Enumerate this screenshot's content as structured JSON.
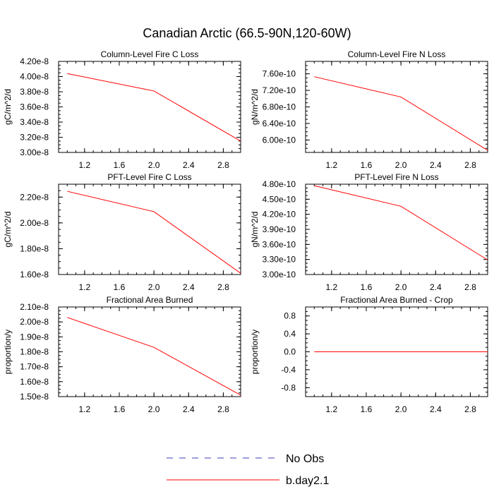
{
  "page": {
    "title": "Canadian Arctic (66.5-90N,120-60W)",
    "line_color": "#ff0000",
    "noobs_color": "#3b3bbf"
  },
  "legend": {
    "entries": [
      {
        "label": "No Obs",
        "style": "dashed",
        "color": "#3b3bbf"
      },
      {
        "label": "b.day2.1",
        "style": "solid",
        "color": "#ff0000"
      }
    ]
  },
  "chart_data": [
    {
      "type": "line",
      "title": "Column-Level Fire C Loss",
      "ylabel": "gC/m^2/d",
      "xlim": [
        0.9,
        3.0
      ],
      "ylim": [
        3e-08,
        4.2e-08
      ],
      "xticks": [
        "1.2",
        "1.6",
        "2.0",
        "2.4",
        "2.8"
      ],
      "xtick_values": [
        1.2,
        1.6,
        2.0,
        2.4,
        2.8
      ],
      "yticks": [
        "3.00e-8",
        "3.20e-8",
        "3.40e-8",
        "3.60e-8",
        "3.80e-8",
        "4.00e-8",
        "4.20e-8"
      ],
      "ytick_values": [
        3e-08,
        3.2e-08,
        3.4e-08,
        3.6e-08,
        3.8e-08,
        4e-08,
        4.2e-08
      ],
      "x": [
        1,
        2,
        3
      ],
      "series": [
        {
          "name": "b.day2.1",
          "values": [
            4.04e-08,
            3.81e-08,
            3.15e-08
          ]
        }
      ]
    },
    {
      "type": "line",
      "title": "Column-Level Fire N Loss",
      "ylabel": "gN/m^2/d",
      "xlim": [
        0.9,
        3.0
      ],
      "ylim": [
        5.7e-10,
        7.9e-10
      ],
      "xticks": [
        "1.2",
        "1.6",
        "2.0",
        "2.4",
        "2.8"
      ],
      "xtick_values": [
        1.2,
        1.6,
        2.0,
        2.4,
        2.8
      ],
      "yticks": [
        "6.00e-10",
        "6.40e-10",
        "6.80e-10",
        "7.20e-10",
        "7.60e-10"
      ],
      "ytick_values": [
        6e-10,
        6.4e-10,
        6.8e-10,
        7.2e-10,
        7.6e-10
      ],
      "x": [
        1,
        2,
        3
      ],
      "series": [
        {
          "name": "b.day2.1",
          "values": [
            7.53e-10,
            7.04e-10,
            5.75e-10
          ]
        }
      ]
    },
    {
      "type": "line",
      "title": "PFT-Level Fire C Loss",
      "ylabel": "gC/m^2/d",
      "xlim": [
        0.9,
        3.0
      ],
      "ylim": [
        1.6e-08,
        2.3e-08
      ],
      "xticks": [
        "1.2",
        "1.6",
        "2.0",
        "2.4",
        "2.8"
      ],
      "xtick_values": [
        1.2,
        1.6,
        2.0,
        2.4,
        2.8
      ],
      "yticks": [
        "1.60e-8",
        "1.80e-8",
        "2.00e-8",
        "2.20e-8"
      ],
      "ytick_values": [
        1.6e-08,
        1.8e-08,
        2e-08,
        2.2e-08
      ],
      "x": [
        1,
        2,
        3
      ],
      "series": [
        {
          "name": "b.day2.1",
          "values": [
            2.245e-08,
            2.087e-08,
            1.61e-08
          ]
        }
      ]
    },
    {
      "type": "line",
      "title": "PFT-Level Fire N Loss",
      "ylabel": "gN/m^2/d",
      "xlim": [
        0.9,
        3.0
      ],
      "ylim": [
        3e-10,
        4.8e-10
      ],
      "xticks": [
        "1.2",
        "1.6",
        "2.0",
        "2.4",
        "2.8"
      ],
      "xtick_values": [
        1.2,
        1.6,
        2.0,
        2.4,
        2.8
      ],
      "yticks": [
        "3.00e-10",
        "3.30e-10",
        "3.60e-10",
        "3.90e-10",
        "4.20e-10",
        "4.50e-10",
        "4.80e-10"
      ],
      "ytick_values": [
        3e-10,
        3.3e-10,
        3.6e-10,
        3.9e-10,
        4.2e-10,
        4.5e-10,
        4.8e-10
      ],
      "x": [
        1,
        2,
        3
      ],
      "series": [
        {
          "name": "b.day2.1",
          "values": [
            4.77e-10,
            4.36e-10,
            3.29e-10
          ]
        }
      ]
    },
    {
      "type": "line",
      "title": "Fractional Area Burned",
      "ylabel": "proportion/y",
      "xlim": [
        0.9,
        3.0
      ],
      "ylim": [
        1.5e-08,
        2.1e-08
      ],
      "xticks": [
        "1.2",
        "1.6",
        "2.0",
        "2.4",
        "2.8"
      ],
      "xtick_values": [
        1.2,
        1.6,
        2.0,
        2.4,
        2.8
      ],
      "yticks": [
        "1.50e-8",
        "1.60e-8",
        "1.70e-8",
        "1.80e-8",
        "1.90e-8",
        "2.00e-8",
        "2.10e-8"
      ],
      "ytick_values": [
        1.5e-08,
        1.6e-08,
        1.7e-08,
        1.8e-08,
        1.9e-08,
        2e-08,
        2.1e-08
      ],
      "x": [
        1,
        2,
        3
      ],
      "series": [
        {
          "name": "b.day2.1",
          "values": [
            2.03e-08,
            1.83e-08,
            1.51e-08
          ]
        }
      ]
    },
    {
      "type": "line",
      "title": "Fractional Area Burned - Crop",
      "ylabel": "proportion/y",
      "xlim": [
        0.9,
        3.0
      ],
      "ylim": [
        -1.0,
        1.0
      ],
      "xticks": [
        "1.2",
        "1.6",
        "2.0",
        "2.4",
        "2.8"
      ],
      "xtick_values": [
        1.2,
        1.6,
        2.0,
        2.4,
        2.8
      ],
      "yticks": [
        "-0.8",
        "-0.4",
        "0.0",
        "0.4",
        "0.8"
      ],
      "ytick_values": [
        -0.8,
        -0.4,
        0.0,
        0.4,
        0.8
      ],
      "x": [
        1,
        2,
        3
      ],
      "series": [
        {
          "name": "b.day2.1",
          "values": [
            0,
            0,
            0
          ]
        }
      ]
    }
  ]
}
